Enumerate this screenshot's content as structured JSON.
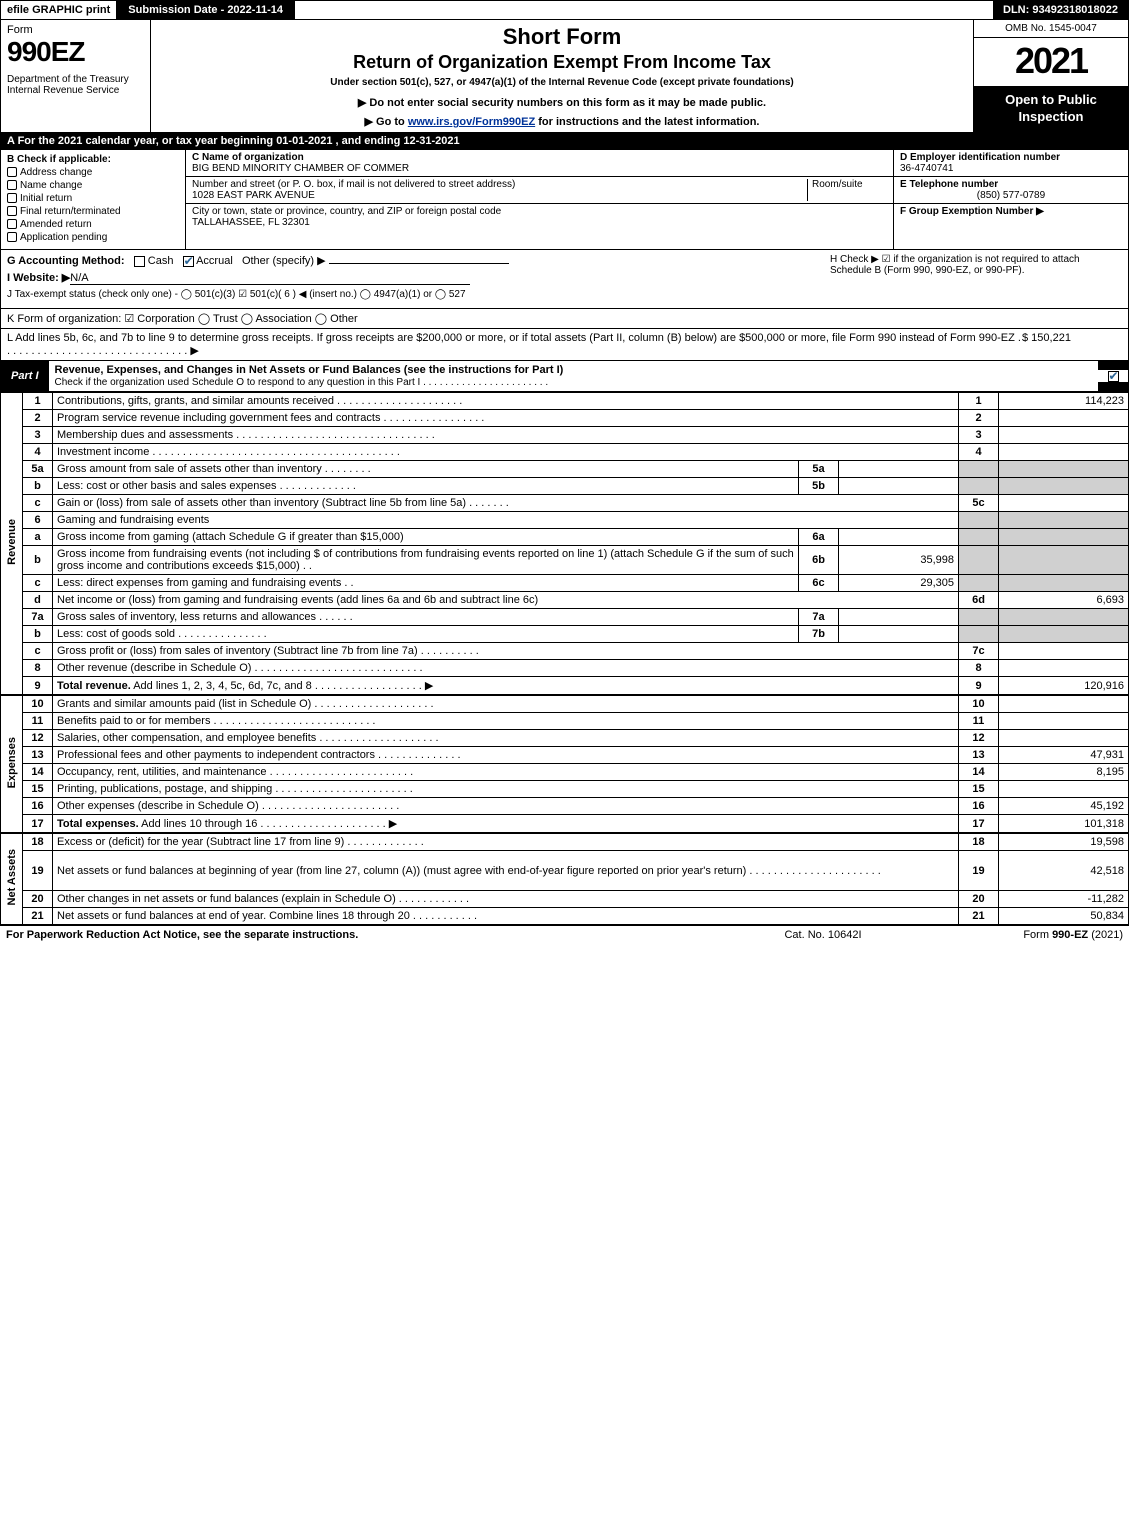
{
  "topbar": {
    "efile": "efile GRAPHIC print",
    "subdate_label": "Submission Date - 2022-11-14",
    "dln": "DLN: 93492318018022"
  },
  "header": {
    "form_label": "Form",
    "form_number": "990EZ",
    "dept": "Department of the Treasury\nInternal Revenue Service",
    "title": "Short Form",
    "sub1": "Return of Organization Exempt From Income Tax",
    "sub2": "Under section 501(c), 527, or 4947(a)(1) of the Internal Revenue Code (except private foundations)",
    "sub3": "▶ Do not enter social security numbers on this form as it may be made public.",
    "sub4_pre": "▶ Go to ",
    "sub4_link": "www.irs.gov/Form990EZ",
    "sub4_post": " for instructions and the latest information.",
    "omb": "OMB No. 1545-0047",
    "year": "2021",
    "open": "Open to Public Inspection"
  },
  "rowA": "A  For the 2021 calendar year, or tax year beginning 01-01-2021 , and ending 12-31-2021",
  "sectionB": {
    "head": "B  Check if applicable:",
    "items": [
      "Address change",
      "Name change",
      "Initial return",
      "Final return/terminated",
      "Amended return",
      "Application pending"
    ]
  },
  "sectionC": {
    "name_label": "C Name of organization",
    "name": "BIG BEND MINORITY CHAMBER OF COMMER",
    "addr_label": "Number and street (or P. O. box, if mail is not delivered to street address)",
    "room_label": "Room/suite",
    "addr": "1028 EAST PARK AVENUE",
    "city_label": "City or town, state or province, country, and ZIP or foreign postal code",
    "city": "TALLAHASSEE, FL  32301"
  },
  "sectionD": {
    "ein_label": "D Employer identification number",
    "ein": "36-4740741",
    "tel_label": "E Telephone number",
    "tel": "(850) 577-0789",
    "group_label": "F Group Exemption Number   ▶"
  },
  "lineG": {
    "label": "G Accounting Method:",
    "cash": "Cash",
    "accrual": "Accrual",
    "other": "Other (specify) ▶"
  },
  "lineH": "H  Check ▶  ☑  if the organization is not required to attach Schedule B (Form 990, 990-EZ, or 990-PF).",
  "lineI": {
    "label": "I Website: ▶",
    "value": "N/A"
  },
  "lineJ": "J Tax-exempt status (check only one) - ◯ 501(c)(3)  ☑ 501(c)( 6 ) ◀ (insert no.)  ◯ 4947(a)(1) or  ◯ 527",
  "lineK": "K Form of organization:   ☑ Corporation   ◯ Trust   ◯ Association   ◯ Other",
  "lineL": {
    "text": "L Add lines 5b, 6c, and 7b to line 9 to determine gross receipts. If gross receipts are $200,000 or more, or if total assets (Part II, column (B) below) are $500,000 or more, file Form 990 instead of Form 990-EZ . . . . . . . . . . . . . . . . . . . . . . . . . . . . . . .  ▶",
    "amount": "$ 150,221"
  },
  "partI": {
    "label": "Part I",
    "title": "Revenue, Expenses, and Changes in Net Assets or Fund Balances (see the instructions for Part I)",
    "subtitle": "Check if the organization used Schedule O to respond to any question in this Part I . . . . . . . . . . . . . . . . . . . . . . ."
  },
  "sections": {
    "revenue": "Revenue",
    "expenses": "Expenses",
    "netassets": "Net Assets"
  },
  "rows": [
    {
      "n": "1",
      "d": "Contributions, gifts, grants, and similar amounts received . . . . . . . . . . . . . . . . . . . . .",
      "ln": "1",
      "amt": "114,223"
    },
    {
      "n": "2",
      "d": "Program service revenue including government fees and contracts . . . . . . . . . . . . . . . . .",
      "ln": "2",
      "amt": ""
    },
    {
      "n": "3",
      "d": "Membership dues and assessments . . . . . . . . . . . . . . . . . . . . . . . . . . . . . . . . .",
      "ln": "3",
      "amt": ""
    },
    {
      "n": "4",
      "d": "Investment income . . . . . . . . . . . . . . . . . . . . . . . . . . . . . . . . . . . . . . . . .",
      "ln": "4",
      "amt": ""
    },
    {
      "n": "5a",
      "d": "Gross amount from sale of assets other than inventory . . . . . . . .",
      "sub": "5a",
      "sv": "",
      "grey": true
    },
    {
      "n": "b",
      "d": "Less: cost or other basis and sales expenses . . . . . . . . . . . . .",
      "sub": "5b",
      "sv": "",
      "grey": true
    },
    {
      "n": "c",
      "d": "Gain or (loss) from sale of assets other than inventory (Subtract line 5b from line 5a) . . . . . . .",
      "ln": "5c",
      "amt": ""
    },
    {
      "n": "6",
      "d": "Gaming and fundraising events",
      "grey": true,
      "nosub": true
    },
    {
      "n": "a",
      "d": "Gross income from gaming (attach Schedule G if greater than $15,000)",
      "sub": "6a",
      "sv": "",
      "grey": true
    },
    {
      "n": "b",
      "d": "Gross income from fundraising events (not including $                          of contributions from fundraising events reported on line 1) (attach Schedule G if the sum of such gross income and contributions exceeds $15,000)     . .",
      "sub": "6b",
      "sv": "35,998",
      "grey": true
    },
    {
      "n": "c",
      "d": "Less: direct expenses from gaming and fundraising events            . .",
      "sub": "6c",
      "sv": "29,305",
      "grey": true
    },
    {
      "n": "d",
      "d": "Net income or (loss) from gaming and fundraising events (add lines 6a and 6b and subtract line 6c)",
      "ln": "6d",
      "amt": "6,693"
    },
    {
      "n": "7a",
      "d": "Gross sales of inventory, less returns and allowances . . . . . .",
      "sub": "7a",
      "sv": "",
      "grey": true
    },
    {
      "n": "b",
      "d": "Less: cost of goods sold         . . . . . . . . . . . . . . .",
      "sub": "7b",
      "sv": "",
      "grey": true
    },
    {
      "n": "c",
      "d": "Gross profit or (loss) from sales of inventory (Subtract line 7b from line 7a) . . . . . . . . . .",
      "ln": "7c",
      "amt": ""
    },
    {
      "n": "8",
      "d": "Other revenue (describe in Schedule O) . . . . . . . . . . . . . . . . . . . . . . . . . . . .",
      "ln": "8",
      "amt": ""
    },
    {
      "n": "9",
      "d": "Total revenue. Add lines 1, 2, 3, 4, 5c, 6d, 7c, and 8  . . . . . . . . . . . . . . . . . .     ▶",
      "ln": "9",
      "amt": "120,916",
      "bold": true
    }
  ],
  "exp_rows": [
    {
      "n": "10",
      "d": "Grants and similar amounts paid (list in Schedule O) . . . . . . . . . . . . . . . . . . . .",
      "ln": "10",
      "amt": ""
    },
    {
      "n": "11",
      "d": "Benefits paid to or for members     . . . . . . . . . . . . . . . . . . . . . . . . . . .",
      "ln": "11",
      "amt": ""
    },
    {
      "n": "12",
      "d": "Salaries, other compensation, and employee benefits . . . . . . . . . . . . . . . . . . . .",
      "ln": "12",
      "amt": ""
    },
    {
      "n": "13",
      "d": "Professional fees and other payments to independent contractors . . . . . . . . . . . . . .",
      "ln": "13",
      "amt": "47,931"
    },
    {
      "n": "14",
      "d": "Occupancy, rent, utilities, and maintenance . . . . . . . . . . . . . . . . . . . . . . . .",
      "ln": "14",
      "amt": "8,195"
    },
    {
      "n": "15",
      "d": "Printing, publications, postage, and shipping . . . . . . . . . . . . . . . . . . . . . . .",
      "ln": "15",
      "amt": ""
    },
    {
      "n": "16",
      "d": "Other expenses (describe in Schedule O)     . . . . . . . . . . . . . . . . . . . . . . .",
      "ln": "16",
      "amt": "45,192"
    },
    {
      "n": "17",
      "d": "Total expenses. Add lines 10 through 16      . . . . . . . . . . . . . . . . . . . . .    ▶",
      "ln": "17",
      "amt": "101,318",
      "bold": true
    }
  ],
  "na_rows": [
    {
      "n": "18",
      "d": "Excess or (deficit) for the year (Subtract line 17 from line 9)        . . . . . . . . . . . . .",
      "ln": "18",
      "amt": "19,598"
    },
    {
      "n": "19",
      "d": "Net assets or fund balances at beginning of year (from line 27, column (A)) (must agree with end-of-year figure reported on prior year's return) . . . . . . . . . . . . . . . . . . . . . .",
      "ln": "19",
      "amt": "42,518",
      "tall": true
    },
    {
      "n": "20",
      "d": "Other changes in net assets or fund balances (explain in Schedule O) . . . . . . . . . . . .",
      "ln": "20",
      "amt": "-11,282"
    },
    {
      "n": "21",
      "d": "Net assets or fund balances at end of year. Combine lines 18 through 20 . . . . . . . . . . .",
      "ln": "21",
      "amt": "50,834"
    }
  ],
  "footer": {
    "left": "For Paperwork Reduction Act Notice, see the separate instructions.",
    "center": "Cat. No. 10642I",
    "right_pre": "Form ",
    "right_bold": "990-EZ",
    "right_post": " (2021)"
  },
  "colors": {
    "link": "#003399",
    "check": "#2a6496",
    "grey": "#d0d0d0"
  }
}
